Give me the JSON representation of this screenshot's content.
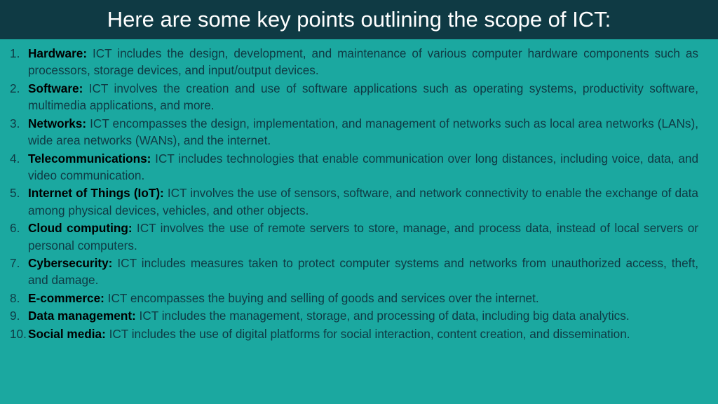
{
  "header": {
    "title": "Here are some key points outlining the scope of ICT:"
  },
  "items": [
    {
      "title": "Hardware:",
      "body": " ICT includes the design, development, and maintenance of various computer hardware components such as processors, storage devices, and input/output devices."
    },
    {
      "title": "Software:",
      "body": " ICT involves the creation and use of software applications such as operating systems, productivity software, multimedia applications, and more."
    },
    {
      "title": "Networks:",
      "body": " ICT encompasses the design, implementation, and management of networks such as local area networks (LANs), wide area networks (WANs), and the internet."
    },
    {
      "title": "Telecommunications:",
      "body": " ICT includes technologies that enable communication over long distances, including voice, data, and video communication."
    },
    {
      "title": "Internet of Things (IoT):",
      "body": " ICT involves the use of sensors, software, and network connectivity to enable the exchange of data among physical devices, vehicles, and other objects."
    },
    {
      "title": "Cloud computing:",
      "body": " ICT involves the use of remote servers to store, manage, and process data, instead of local servers or personal computers."
    },
    {
      "title": "Cybersecurity:",
      "body": " ICT includes measures taken to protect computer systems and networks from unauthorized access, theft, and damage."
    },
    {
      "title": "E-commerce:",
      "body": " ICT encompasses the buying and selling of goods and services over the internet."
    },
    {
      "title": "Data management:",
      "body": " ICT includes the management, storage, and processing of data, including big data analytics."
    },
    {
      "title": "Social media:",
      "body": " ICT includes the use of digital platforms for social interaction, content creation, and dissemination."
    }
  ],
  "colors": {
    "background": "#1ba8a0",
    "header_bg": "#0f3a44",
    "header_text": "#ffffff",
    "body_text": "#0f3a44",
    "title_text": "#000000"
  },
  "typography": {
    "header_fontsize": 31,
    "body_fontsize": 17.2,
    "line_height": 1.42
  }
}
